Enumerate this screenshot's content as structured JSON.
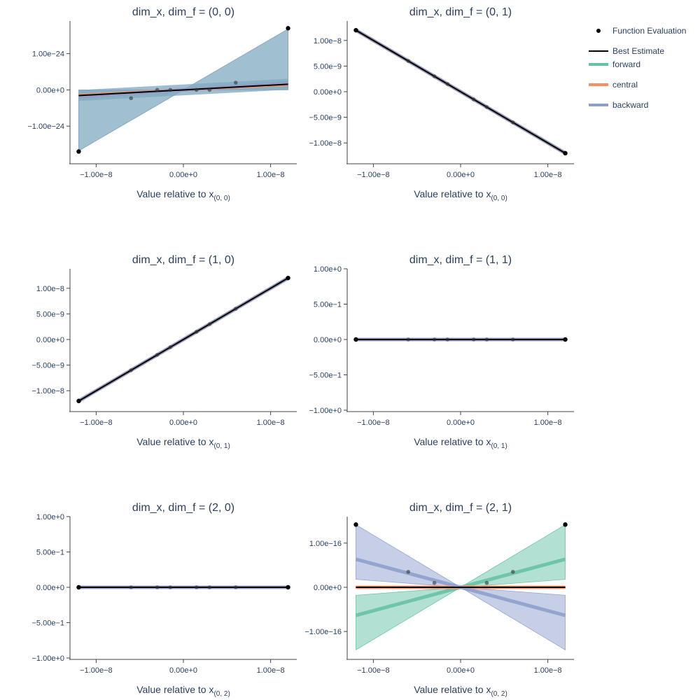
{
  "legend": {
    "items": [
      {
        "id": "function-evaluation",
        "label": "Function Evaluation",
        "kind": "marker",
        "color": "#000000"
      },
      {
        "id": "best-estimate",
        "label": "Best Estimate",
        "kind": "line",
        "color": "#000000"
      },
      {
        "id": "forward",
        "label": "forward",
        "kind": "thick-line",
        "color": "#66c2a5"
      },
      {
        "id": "central",
        "label": "central",
        "kind": "thick-line",
        "color": "#fc8d62"
      },
      {
        "id": "backward",
        "label": "backward",
        "kind": "thick-line",
        "color": "#8da0cb"
      }
    ]
  },
  "colors": {
    "forward": "#66c2a5",
    "central": "#fc8d62",
    "backward": "#8da0cb",
    "best": "#000000",
    "eval": "#000000",
    "axis": "#444444"
  },
  "chart_data": [
    {
      "type": "line",
      "title": "dim_x, dim_f = (0, 0)",
      "xlabel": "Value relative to x",
      "xlabel_sub": "(0, 0)",
      "xlim": [
        -1.3e-08,
        1.3e-08
      ],
      "xticks": [
        {
          "v": -1e-08,
          "label": "−1.00e−8"
        },
        {
          "v": 0,
          "label": "0.00e+0"
        },
        {
          "v": 1e-08,
          "label": "1.00e−8"
        }
      ],
      "ylim": [
        -2e-24,
        1.9e-24
      ],
      "yticks": [
        {
          "v": 1e-24,
          "label": "1.00e−24"
        },
        {
          "v": 0,
          "label": "0.00e+0"
        },
        {
          "v": -1e-24,
          "label": "−1.00e−24"
        }
      ],
      "points_x": [
        -1.2e-08,
        -6e-09,
        -3e-09,
        -1.5e-09,
        1.5e-09,
        3e-09,
        6e-09,
        1.2e-08
      ],
      "points_y": [
        -1.7e-24,
        -2.3e-25,
        0,
        0,
        0,
        0,
        2e-25,
        1.7e-24
      ],
      "best_slope": 1.3e-17,
      "estimates": [
        {
          "method": "forward",
          "slope": 1.3e-17,
          "band": [
            0,
            1.4e-16
          ]
        },
        {
          "method": "central",
          "slope": 1.3e-17,
          "band": [
            1.3e-17,
            1.3e-17
          ]
        },
        {
          "method": "backward",
          "slope": 1.6e-17,
          "band": [
            1.4e-16,
            0
          ]
        }
      ],
      "uniform_band": {
        "color": "#7fa8c4",
        "half_width": 1.5e-25
      }
    },
    {
      "type": "line",
      "title": "dim_x, dim_f = (0, 1)",
      "xlabel": "Value relative to x",
      "xlabel_sub": "(0, 0)",
      "xlim": [
        -1.3e-08,
        1.3e-08
      ],
      "xticks": [
        {
          "v": -1e-08,
          "label": "−1.00e−8"
        },
        {
          "v": 0,
          "label": "0.00e+0"
        },
        {
          "v": 1e-08,
          "label": "1.00e−8"
        }
      ],
      "ylim": [
        -1.38e-08,
        1.38e-08
      ],
      "yticks": [
        {
          "v": 1e-08,
          "label": "1.00e−8"
        },
        {
          "v": 5e-09,
          "label": "5.00e−9"
        },
        {
          "v": 0,
          "label": "0.00e+0"
        },
        {
          "v": -5e-09,
          "label": "−5.00e−9"
        },
        {
          "v": -1e-08,
          "label": "−1.00e−8"
        }
      ],
      "points_x": [
        -1.2e-08,
        -6e-09,
        -3e-09,
        -1.5e-09,
        1.5e-09,
        3e-09,
        6e-09,
        1.2e-08
      ],
      "points_y": [
        1.2e-08,
        6e-09,
        3e-09,
        1.5e-09,
        -1.5e-09,
        -3e-09,
        -6e-09,
        -1.2e-08
      ],
      "best_slope": -1.0,
      "estimates": [
        {
          "method": "forward",
          "slope": -1.0,
          "band": [
            -1.0,
            -1.0
          ]
        },
        {
          "method": "central",
          "slope": -1.0,
          "band": [
            -1.0,
            -1.0
          ]
        },
        {
          "method": "backward",
          "slope": -1.0,
          "band": [
            -1.0,
            -1.0
          ]
        }
      ]
    },
    {
      "type": "line",
      "title": "dim_x, dim_f = (1, 0)",
      "xlabel": "Value relative to x",
      "xlabel_sub": "(0, 1)",
      "xlim": [
        -1.3e-08,
        1.3e-08
      ],
      "xticks": [
        {
          "v": -1e-08,
          "label": "−1.00e−8"
        },
        {
          "v": 0,
          "label": "0.00e+0"
        },
        {
          "v": 1e-08,
          "label": "1.00e−8"
        }
      ],
      "ylim": [
        -1.38e-08,
        1.38e-08
      ],
      "yticks": [
        {
          "v": 1e-08,
          "label": "1.00e−8"
        },
        {
          "v": 5e-09,
          "label": "5.00e−9"
        },
        {
          "v": 0,
          "label": "0.00e+0"
        },
        {
          "v": -5e-09,
          "label": "−5.00e−9"
        },
        {
          "v": -1e-08,
          "label": "−1.00e−8"
        }
      ],
      "points_x": [
        -1.2e-08,
        -6e-09,
        -3e-09,
        -1.5e-09,
        1.5e-09,
        3e-09,
        6e-09,
        1.2e-08
      ],
      "points_y": [
        -1.2e-08,
        -6e-09,
        -3e-09,
        -1.5e-09,
        1.5e-09,
        3e-09,
        6e-09,
        1.2e-08
      ],
      "best_slope": 1.0,
      "estimates": [
        {
          "method": "forward",
          "slope": 1.0,
          "band": [
            1.0,
            1.0
          ]
        },
        {
          "method": "central",
          "slope": 1.0,
          "band": [
            1.0,
            1.0
          ]
        },
        {
          "method": "backward",
          "slope": 1.0,
          "band": [
            1.0,
            1.0
          ]
        }
      ]
    },
    {
      "type": "line",
      "title": "dim_x, dim_f = (1, 1)",
      "xlabel": "Value relative to x",
      "xlabel_sub": "(0, 1)",
      "xlim": [
        -1.3e-08,
        1.3e-08
      ],
      "xticks": [
        {
          "v": -1e-08,
          "label": "−1.00e−8"
        },
        {
          "v": 0,
          "label": "0.00e+0"
        },
        {
          "v": 1e-08,
          "label": "1.00e−8"
        }
      ],
      "ylim": [
        -1.0,
        1.0
      ],
      "yticks": [
        {
          "v": 1,
          "label": "1.00e+0"
        },
        {
          "v": 0.5,
          "label": "5.00e−1"
        },
        {
          "v": 0,
          "label": "0.00e+0"
        },
        {
          "v": -0.5,
          "label": "−5.00e−1"
        },
        {
          "v": -1,
          "label": "−1.00e+0"
        }
      ],
      "points_x": [
        -1.2e-08,
        -6e-09,
        -3e-09,
        -1.5e-09,
        1.5e-09,
        3e-09,
        6e-09,
        1.2e-08
      ],
      "points_y": [
        0,
        0,
        0,
        0,
        0,
        0,
        0,
        0
      ],
      "best_slope": 0,
      "estimates": [
        {
          "method": "forward",
          "slope": 0,
          "band": [
            0,
            0
          ]
        },
        {
          "method": "central",
          "slope": 0,
          "band": [
            0,
            0
          ]
        },
        {
          "method": "backward",
          "slope": 0,
          "band": [
            0,
            0
          ]
        }
      ]
    },
    {
      "type": "line",
      "title": "dim_x, dim_f = (2, 0)",
      "xlabel": "Value relative to x",
      "xlabel_sub": "(0, 2)",
      "xlim": [
        -1.3e-08,
        1.3e-08
      ],
      "xticks": [
        {
          "v": -1e-08,
          "label": "−1.00e−8"
        },
        {
          "v": 0,
          "label": "0.00e+0"
        },
        {
          "v": 1e-08,
          "label": "1.00e−8"
        }
      ],
      "ylim": [
        -1.0,
        1.0
      ],
      "yticks": [
        {
          "v": 1,
          "label": "1.00e+0"
        },
        {
          "v": 0.5,
          "label": "5.00e−1"
        },
        {
          "v": 0,
          "label": "0.00e+0"
        },
        {
          "v": -0.5,
          "label": "−5.00e−1"
        },
        {
          "v": -1,
          "label": "−1.00e+0"
        }
      ],
      "points_x": [
        -1.2e-08,
        -6e-09,
        -3e-09,
        -1.5e-09,
        1.5e-09,
        3e-09,
        6e-09,
        1.2e-08
      ],
      "points_y": [
        0,
        0,
        0,
        0,
        0,
        0,
        0,
        0
      ],
      "best_slope": 0,
      "estimates": [
        {
          "method": "forward",
          "slope": 0,
          "band": [
            0,
            0
          ]
        },
        {
          "method": "central",
          "slope": 0,
          "band": [
            0,
            0
          ]
        },
        {
          "method": "backward",
          "slope": 0,
          "band": [
            0,
            0
          ]
        }
      ]
    },
    {
      "type": "line",
      "title": "dim_x, dim_f = (2, 1)",
      "xlabel": "Value relative to x",
      "xlabel_sub": "(0, 2)",
      "xlim": [
        -1.3e-08,
        1.3e-08
      ],
      "xticks": [
        {
          "v": -1e-08,
          "label": "−1.00e−8"
        },
        {
          "v": 0,
          "label": "0.00e+0"
        },
        {
          "v": 1e-08,
          "label": "1.00e−8"
        }
      ],
      "ylim": [
        -1.6e-16,
        1.6e-16
      ],
      "yticks": [
        {
          "v": 1e-16,
          "label": "1.00e−16"
        },
        {
          "v": 0,
          "label": "0.00e+0"
        },
        {
          "v": -1e-16,
          "label": "−1.00e−16"
        }
      ],
      "points_x": [
        -1.2e-08,
        -6e-09,
        -3e-09,
        3e-09,
        6e-09,
        1.2e-08
      ],
      "points_y": [
        1.42e-16,
        3.5e-17,
        1e-17,
        1e-17,
        3.5e-17,
        1.42e-16
      ],
      "best_slope": 0,
      "estimates": [
        {
          "method": "forward",
          "slope": 5.3e-09,
          "band": [
            1.5e-09,
            1.18e-08
          ]
        },
        {
          "method": "central",
          "slope": 0,
          "band": [
            -1.5e-10,
            1.5e-10
          ]
        },
        {
          "method": "backward",
          "slope": -5.3e-09,
          "band": [
            -1.5e-09,
            -1.18e-08
          ]
        }
      ]
    }
  ]
}
